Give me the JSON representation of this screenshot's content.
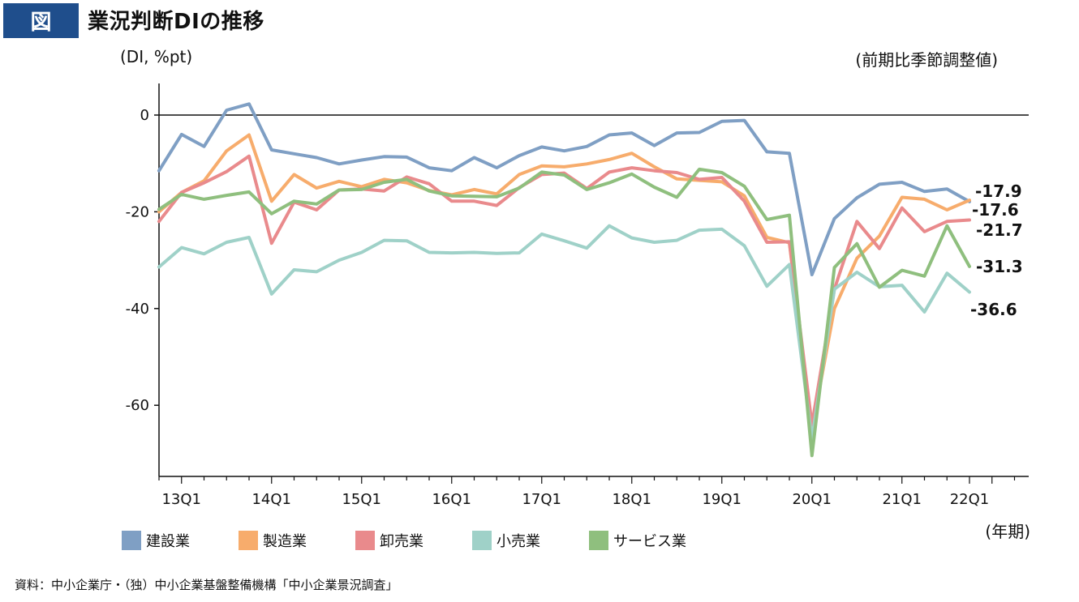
{
  "header": {
    "badge": "図",
    "title": "業況判断DIの推移"
  },
  "source": "資料：中小企業庁・（独）中小企業基盤整備機構「中小企業景況調査」",
  "chart_data": {
    "type": "line",
    "y_unit_label": "(DI, %pt)",
    "adjust_note": "(前期比季節調整値)",
    "x_unit_label": "(年期)",
    "ylim": [
      -75,
      7
    ],
    "yticks": [
      0,
      -20,
      -40,
      -60
    ],
    "ytick_labels": [
      "0",
      "-20",
      "-40",
      "-60"
    ],
    "x_count": 37,
    "x_tick_labels": [
      {
        "i": 1,
        "label": "13Q1"
      },
      {
        "i": 5,
        "label": "14Q1"
      },
      {
        "i": 9,
        "label": "15Q1"
      },
      {
        "i": 13,
        "label": "16Q1"
      },
      {
        "i": 17,
        "label": "17Q1"
      },
      {
        "i": 21,
        "label": "18Q1"
      },
      {
        "i": 25,
        "label": "19Q1"
      },
      {
        "i": 29,
        "label": "20Q1"
      },
      {
        "i": 33,
        "label": "21Q1"
      },
      {
        "i": 36,
        "label": "22Q1"
      }
    ],
    "series": [
      {
        "name": "建設業",
        "color": "#7f9fc4",
        "end_label": "-17.9",
        "values": [
          -11.5,
          -4,
          -6.5,
          1,
          2.3,
          -7.2,
          -8,
          -8.8,
          -10.1,
          -9.3,
          -8.6,
          -8.7,
          -10.9,
          -11.5,
          -8.8,
          -10.9,
          -8.4,
          -6.6,
          -7.4,
          -6.5,
          -4.1,
          -3.7,
          -6.3,
          -3.7,
          -3.6,
          -1.3,
          -1.1,
          -7.6,
          -7.9,
          -33,
          -21.4,
          -17.1,
          -14.3,
          -13.9,
          -15.8,
          -15.3,
          -17.9
        ]
      },
      {
        "name": "製造業",
        "color": "#f7ac6c",
        "end_label": "-17.6",
        "values": [
          -20,
          -16,
          -13.6,
          -7.4,
          -4.1,
          -17.8,
          -12.3,
          -15.1,
          -13.7,
          -14.8,
          -13.3,
          -14,
          -15.6,
          -16.5,
          -15.4,
          -16.3,
          -12.3,
          -10.5,
          -10.7,
          -10.1,
          -9.2,
          -7.9,
          -10.7,
          -13.2,
          -13.5,
          -13.8,
          -16.7,
          -25.3,
          -26.4,
          -65,
          -40,
          -29.6,
          -25,
          -17,
          -17.4,
          -19.6,
          -17.6
        ]
      },
      {
        "name": "卸売業",
        "color": "#e98a8c",
        "end_label": "-21.7",
        "values": [
          -22,
          -16,
          -14,
          -11.7,
          -8.5,
          -26.5,
          -18,
          -19.6,
          -15.5,
          -15.3,
          -15.7,
          -12.8,
          -14.2,
          -17.8,
          -17.8,
          -18.7,
          -15,
          -12.3,
          -12,
          -15.2,
          -11.8,
          -10.9,
          -11.5,
          -11.9,
          -13.3,
          -12.9,
          -17.8,
          -26.3,
          -26.2,
          -64,
          -36,
          -22,
          -27.6,
          -19.2,
          -24.1,
          -22,
          -21.7
        ]
      },
      {
        "name": "小売業",
        "color": "#9fd1c8",
        "end_label": "-36.6",
        "values": [
          -31.4,
          -27.4,
          -28.7,
          -26.3,
          -25.3,
          -37,
          -32,
          -32.4,
          -30,
          -28.4,
          -25.9,
          -26,
          -28.4,
          -28.5,
          -28.4,
          -28.6,
          -28.5,
          -24.6,
          -26,
          -27.5,
          -22.9,
          -25.4,
          -26.3,
          -25.9,
          -23.8,
          -23.6,
          -27,
          -35.4,
          -30.9,
          -67,
          -36,
          -32.5,
          -35.5,
          -35.2,
          -40.7,
          -32.7,
          -36.6
        ]
      },
      {
        "name": "サービス業",
        "color": "#8fbf7e",
        "end_label": "-31.3",
        "values": [
          -19.5,
          -16.4,
          -17.4,
          -16.6,
          -15.9,
          -20.4,
          -17.8,
          -18.4,
          -15.5,
          -15.4,
          -13.9,
          -13.3,
          -15.7,
          -16.7,
          -16.8,
          -16.9,
          -15.1,
          -11.8,
          -12.4,
          -15.4,
          -14,
          -12.2,
          -14.9,
          -17,
          -11.2,
          -11.9,
          -14.7,
          -21.6,
          -20.7,
          -70.4,
          -31.5,
          -26.6,
          -35.6,
          -32.1,
          -33.3,
          -22.9,
          -31.3
        ]
      }
    ]
  }
}
